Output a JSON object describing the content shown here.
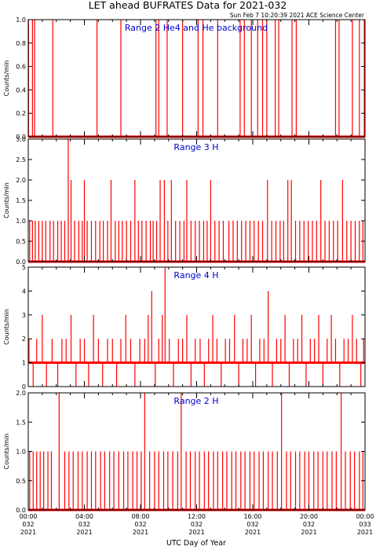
{
  "header": {
    "title": "LET ahead BUFRATES Data for 2021-032",
    "timestamp": "Sun Feb  7 10:20:39 2021 ACE Science Center"
  },
  "colors": {
    "trace": "#ff0000",
    "label": "#0000cc",
    "axis": "#000000"
  },
  "x_axis": {
    "label": "UTC Day of Year",
    "ticks": [
      {
        "time": "00:00",
        "doy": "032",
        "year": "2021"
      },
      {
        "time": "04:00",
        "doy": "032",
        "year": "2021"
      },
      {
        "time": "08:00",
        "doy": "032",
        "year": "2021"
      },
      {
        "time": "12:00",
        "doy": "032",
        "year": "2021"
      },
      {
        "time": "16:00",
        "doy": "032",
        "year": "2021"
      },
      {
        "time": "20:00",
        "doy": "032",
        "year": "2021"
      },
      {
        "time": "00:00",
        "doy": "033",
        "year": "2021"
      }
    ]
  },
  "chart_data": [
    {
      "type": "line",
      "label": "Range 2 He4 and He background",
      "ylabel": "Counts/min",
      "ylim": [
        0,
        1
      ],
      "yticks": [
        "0.0",
        "0.2",
        "0.4",
        "0.6",
        "0.8",
        "1.0"
      ],
      "xlim_hours": [
        0,
        24
      ],
      "baseline": 0,
      "spikes": [
        {
          "x": 0.02,
          "y": 1
        },
        {
          "x": 0.3,
          "y": 1
        },
        {
          "x": 0.45,
          "y": 1
        },
        {
          "x": 1.75,
          "y": 1
        },
        {
          "x": 4.9,
          "y": 1
        },
        {
          "x": 6.6,
          "y": 1
        },
        {
          "x": 9.1,
          "y": 1
        },
        {
          "x": 9.3,
          "y": 1
        },
        {
          "x": 9.9,
          "y": 1
        },
        {
          "x": 11.0,
          "y": 1
        },
        {
          "x": 12.1,
          "y": 1
        },
        {
          "x": 12.45,
          "y": 1
        },
        {
          "x": 13.5,
          "y": 1
        },
        {
          "x": 15.1,
          "y": 1
        },
        {
          "x": 15.4,
          "y": 1
        },
        {
          "x": 15.9,
          "y": 1
        },
        {
          "x": 16.35,
          "y": 1
        },
        {
          "x": 16.7,
          "y": 1
        },
        {
          "x": 17.0,
          "y": 1
        },
        {
          "x": 17.6,
          "y": 1
        },
        {
          "x": 17.85,
          "y": 1
        },
        {
          "x": 18.8,
          "y": 1
        },
        {
          "x": 19.1,
          "y": 1
        },
        {
          "x": 21.9,
          "y": 1
        },
        {
          "x": 22.15,
          "y": 1
        },
        {
          "x": 23.1,
          "y": 1
        },
        {
          "x": 23.6,
          "y": 1
        },
        {
          "x": 23.95,
          "y": 1
        }
      ]
    },
    {
      "type": "line",
      "label": "Range 3 H",
      "ylabel": "Counts/min",
      "ylim": [
        0,
        3
      ],
      "yticks": [
        "0.0",
        "0.5",
        "1.0",
        "1.5",
        "2.0",
        "2.5",
        "3.0"
      ],
      "xlim_hours": [
        0,
        24
      ],
      "baseline": 0,
      "spikes": [
        {
          "x": 0.1,
          "y": 1
        },
        {
          "x": 0.3,
          "y": 1
        },
        {
          "x": 0.5,
          "y": 1
        },
        {
          "x": 0.75,
          "y": 1
        },
        {
          "x": 1.0,
          "y": 1
        },
        {
          "x": 1.25,
          "y": 1
        },
        {
          "x": 1.55,
          "y": 1
        },
        {
          "x": 1.8,
          "y": 1
        },
        {
          "x": 2.1,
          "y": 1
        },
        {
          "x": 2.35,
          "y": 1
        },
        {
          "x": 2.6,
          "y": 1
        },
        {
          "x": 2.85,
          "y": 3
        },
        {
          "x": 3.05,
          "y": 2
        },
        {
          "x": 3.3,
          "y": 1
        },
        {
          "x": 3.6,
          "y": 1
        },
        {
          "x": 3.85,
          "y": 1
        },
        {
          "x": 4.0,
          "y": 2
        },
        {
          "x": 4.2,
          "y": 1
        },
        {
          "x": 4.5,
          "y": 1
        },
        {
          "x": 4.8,
          "y": 1
        },
        {
          "x": 5.1,
          "y": 1
        },
        {
          "x": 5.35,
          "y": 1
        },
        {
          "x": 5.65,
          "y": 1
        },
        {
          "x": 5.9,
          "y": 2
        },
        {
          "x": 6.2,
          "y": 1
        },
        {
          "x": 6.45,
          "y": 1
        },
        {
          "x": 6.7,
          "y": 1
        },
        {
          "x": 7.0,
          "y": 1
        },
        {
          "x": 7.3,
          "y": 1
        },
        {
          "x": 7.6,
          "y": 2
        },
        {
          "x": 7.85,
          "y": 1
        },
        {
          "x": 8.1,
          "y": 1
        },
        {
          "x": 8.4,
          "y": 1
        },
        {
          "x": 8.7,
          "y": 1
        },
        {
          "x": 8.9,
          "y": 1
        },
        {
          "x": 9.15,
          "y": 1
        },
        {
          "x": 9.4,
          "y": 2
        },
        {
          "x": 9.7,
          "y": 2
        },
        {
          "x": 9.95,
          "y": 1
        },
        {
          "x": 10.2,
          "y": 2
        },
        {
          "x": 10.5,
          "y": 1
        },
        {
          "x": 10.8,
          "y": 1
        },
        {
          "x": 11.1,
          "y": 1
        },
        {
          "x": 11.3,
          "y": 2
        },
        {
          "x": 11.6,
          "y": 1
        },
        {
          "x": 11.9,
          "y": 1
        },
        {
          "x": 12.2,
          "y": 1
        },
        {
          "x": 12.5,
          "y": 1
        },
        {
          "x": 12.75,
          "y": 1
        },
        {
          "x": 13.0,
          "y": 2
        },
        {
          "x": 13.3,
          "y": 1
        },
        {
          "x": 13.6,
          "y": 1
        },
        {
          "x": 13.9,
          "y": 1
        },
        {
          "x": 14.3,
          "y": 1
        },
        {
          "x": 14.6,
          "y": 1
        },
        {
          "x": 14.9,
          "y": 1
        },
        {
          "x": 15.2,
          "y": 1
        },
        {
          "x": 15.5,
          "y": 1
        },
        {
          "x": 15.8,
          "y": 1
        },
        {
          "x": 16.1,
          "y": 1
        },
        {
          "x": 16.4,
          "y": 1
        },
        {
          "x": 16.7,
          "y": 1
        },
        {
          "x": 17.05,
          "y": 2
        },
        {
          "x": 17.35,
          "y": 1
        },
        {
          "x": 17.65,
          "y": 1
        },
        {
          "x": 17.95,
          "y": 1
        },
        {
          "x": 18.2,
          "y": 1
        },
        {
          "x": 18.5,
          "y": 2
        },
        {
          "x": 18.75,
          "y": 2
        },
        {
          "x": 19.05,
          "y": 1
        },
        {
          "x": 19.35,
          "y": 1
        },
        {
          "x": 19.65,
          "y": 1
        },
        {
          "x": 19.95,
          "y": 1
        },
        {
          "x": 20.25,
          "y": 1
        },
        {
          "x": 20.55,
          "y": 1
        },
        {
          "x": 20.85,
          "y": 2
        },
        {
          "x": 21.15,
          "y": 1
        },
        {
          "x": 21.45,
          "y": 1
        },
        {
          "x": 21.75,
          "y": 1
        },
        {
          "x": 22.05,
          "y": 1
        },
        {
          "x": 22.4,
          "y": 2
        },
        {
          "x": 22.7,
          "y": 1
        },
        {
          "x": 23.0,
          "y": 1
        },
        {
          "x": 23.3,
          "y": 1
        },
        {
          "x": 23.6,
          "y": 1
        },
        {
          "x": 23.85,
          "y": 1
        }
      ]
    },
    {
      "type": "line",
      "label": "Range 4 H",
      "ylabel": "Counts/min",
      "ylim": [
        0,
        5
      ],
      "yticks": [
        "0",
        "1",
        "2",
        "3",
        "4",
        "5"
      ],
      "xlim_hours": [
        0,
        24
      ],
      "baseline": 1,
      "spikes": [
        {
          "x": 0.05,
          "y": 2
        },
        {
          "x": 0.35,
          "y": 0
        },
        {
          "x": 0.6,
          "y": 2
        },
        {
          "x": 1.0,
          "y": 3
        },
        {
          "x": 1.3,
          "y": 0
        },
        {
          "x": 1.7,
          "y": 2
        },
        {
          "x": 2.1,
          "y": 0
        },
        {
          "x": 2.4,
          "y": 2
        },
        {
          "x": 2.7,
          "y": 2
        },
        {
          "x": 3.05,
          "y": 3
        },
        {
          "x": 3.4,
          "y": 0
        },
        {
          "x": 3.7,
          "y": 2
        },
        {
          "x": 4.0,
          "y": 2
        },
        {
          "x": 4.3,
          "y": 0
        },
        {
          "x": 4.65,
          "y": 3
        },
        {
          "x": 5.0,
          "y": 2
        },
        {
          "x": 5.3,
          "y": 0
        },
        {
          "x": 5.65,
          "y": 2
        },
        {
          "x": 6.0,
          "y": 2
        },
        {
          "x": 6.3,
          "y": 0
        },
        {
          "x": 6.6,
          "y": 2
        },
        {
          "x": 6.95,
          "y": 3
        },
        {
          "x": 7.3,
          "y": 2
        },
        {
          "x": 7.6,
          "y": 0
        },
        {
          "x": 7.95,
          "y": 2
        },
        {
          "x": 8.3,
          "y": 2
        },
        {
          "x": 8.55,
          "y": 3
        },
        {
          "x": 8.8,
          "y": 4
        },
        {
          "x": 9.05,
          "y": 0
        },
        {
          "x": 9.3,
          "y": 2
        },
        {
          "x": 9.55,
          "y": 3
        },
        {
          "x": 9.75,
          "y": 5
        },
        {
          "x": 10.05,
          "y": 2
        },
        {
          "x": 10.35,
          "y": 0
        },
        {
          "x": 10.7,
          "y": 2
        },
        {
          "x": 11.0,
          "y": 2
        },
        {
          "x": 11.3,
          "y": 3
        },
        {
          "x": 11.6,
          "y": 0
        },
        {
          "x": 11.9,
          "y": 2
        },
        {
          "x": 12.25,
          "y": 2
        },
        {
          "x": 12.55,
          "y": 0
        },
        {
          "x": 12.85,
          "y": 2
        },
        {
          "x": 13.15,
          "y": 3
        },
        {
          "x": 13.45,
          "y": 2
        },
        {
          "x": 13.75,
          "y": 0
        },
        {
          "x": 14.05,
          "y": 2
        },
        {
          "x": 14.35,
          "y": 2
        },
        {
          "x": 14.7,
          "y": 3
        },
        {
          "x": 15.0,
          "y": 0
        },
        {
          "x": 15.3,
          "y": 2
        },
        {
          "x": 15.6,
          "y": 2
        },
        {
          "x": 15.9,
          "y": 3
        },
        {
          "x": 16.2,
          "y": 0
        },
        {
          "x": 16.5,
          "y": 2
        },
        {
          "x": 16.8,
          "y": 2
        },
        {
          "x": 17.1,
          "y": 4
        },
        {
          "x": 17.4,
          "y": 0
        },
        {
          "x": 17.7,
          "y": 2
        },
        {
          "x": 18.0,
          "y": 2
        },
        {
          "x": 18.3,
          "y": 3
        },
        {
          "x": 18.6,
          "y": 0
        },
        {
          "x": 18.9,
          "y": 2
        },
        {
          "x": 19.2,
          "y": 2
        },
        {
          "x": 19.5,
          "y": 3
        },
        {
          "x": 19.8,
          "y": 0
        },
        {
          "x": 20.1,
          "y": 2
        },
        {
          "x": 20.4,
          "y": 2
        },
        {
          "x": 20.7,
          "y": 3
        },
        {
          "x": 21.0,
          "y": 0
        },
        {
          "x": 21.3,
          "y": 2
        },
        {
          "x": 21.6,
          "y": 3
        },
        {
          "x": 21.9,
          "y": 2
        },
        {
          "x": 22.2,
          "y": 0
        },
        {
          "x": 22.5,
          "y": 2
        },
        {
          "x": 22.8,
          "y": 2
        },
        {
          "x": 23.1,
          "y": 3
        },
        {
          "x": 23.4,
          "y": 2
        },
        {
          "x": 23.7,
          "y": 0
        },
        {
          "x": 23.9,
          "y": 2
        }
      ]
    },
    {
      "type": "line",
      "label": "Range 2 H",
      "ylabel": "Counts/min",
      "ylim": [
        0,
        2
      ],
      "yticks": [
        "0.0",
        "0.5",
        "1.0",
        "1.5",
        "2.0"
      ],
      "xlim_hours": [
        0,
        24
      ],
      "baseline": 0,
      "spikes": [
        {
          "x": 0.1,
          "y": 1
        },
        {
          "x": 0.35,
          "y": 1
        },
        {
          "x": 0.6,
          "y": 1
        },
        {
          "x": 0.85,
          "y": 1
        },
        {
          "x": 1.1,
          "y": 1
        },
        {
          "x": 1.4,
          "y": 1
        },
        {
          "x": 1.65,
          "y": 1
        },
        {
          "x": 2.2,
          "y": 2
        },
        {
          "x": 2.6,
          "y": 1
        },
        {
          "x": 2.9,
          "y": 1
        },
        {
          "x": 3.2,
          "y": 1
        },
        {
          "x": 3.55,
          "y": 1
        },
        {
          "x": 3.85,
          "y": 1
        },
        {
          "x": 4.2,
          "y": 1
        },
        {
          "x": 4.5,
          "y": 1
        },
        {
          "x": 4.8,
          "y": 1
        },
        {
          "x": 5.15,
          "y": 1
        },
        {
          "x": 5.45,
          "y": 1
        },
        {
          "x": 5.8,
          "y": 1
        },
        {
          "x": 6.1,
          "y": 1
        },
        {
          "x": 6.45,
          "y": 1
        },
        {
          "x": 6.8,
          "y": 1
        },
        {
          "x": 7.1,
          "y": 1
        },
        {
          "x": 7.45,
          "y": 1
        },
        {
          "x": 7.75,
          "y": 1
        },
        {
          "x": 8.05,
          "y": 1
        },
        {
          "x": 8.3,
          "y": 2
        },
        {
          "x": 8.65,
          "y": 1
        },
        {
          "x": 9.0,
          "y": 1
        },
        {
          "x": 9.3,
          "y": 1
        },
        {
          "x": 9.65,
          "y": 1
        },
        {
          "x": 9.95,
          "y": 1
        },
        {
          "x": 10.3,
          "y": 1
        },
        {
          "x": 10.65,
          "y": 1
        },
        {
          "x": 10.9,
          "y": 2
        },
        {
          "x": 11.25,
          "y": 1
        },
        {
          "x": 11.55,
          "y": 1
        },
        {
          "x": 11.9,
          "y": 1
        },
        {
          "x": 12.2,
          "y": 1
        },
        {
          "x": 12.55,
          "y": 1
        },
        {
          "x": 12.85,
          "y": 1
        },
        {
          "x": 13.2,
          "y": 1
        },
        {
          "x": 13.5,
          "y": 1
        },
        {
          "x": 13.85,
          "y": 1
        },
        {
          "x": 14.15,
          "y": 1
        },
        {
          "x": 14.5,
          "y": 1
        },
        {
          "x": 14.8,
          "y": 1
        },
        {
          "x": 15.15,
          "y": 1
        },
        {
          "x": 15.45,
          "y": 1
        },
        {
          "x": 15.8,
          "y": 1
        },
        {
          "x": 16.1,
          "y": 1
        },
        {
          "x": 16.45,
          "y": 1
        },
        {
          "x": 16.75,
          "y": 1
        },
        {
          "x": 17.1,
          "y": 1
        },
        {
          "x": 17.4,
          "y": 1
        },
        {
          "x": 17.75,
          "y": 1
        },
        {
          "x": 18.05,
          "y": 2
        },
        {
          "x": 18.4,
          "y": 1
        },
        {
          "x": 18.7,
          "y": 1
        },
        {
          "x": 19.05,
          "y": 1
        },
        {
          "x": 19.35,
          "y": 1
        },
        {
          "x": 19.7,
          "y": 1
        },
        {
          "x": 20.0,
          "y": 1
        },
        {
          "x": 20.35,
          "y": 1
        },
        {
          "x": 20.65,
          "y": 1
        },
        {
          "x": 21.0,
          "y": 1
        },
        {
          "x": 21.3,
          "y": 1
        },
        {
          "x": 21.65,
          "y": 1
        },
        {
          "x": 21.95,
          "y": 1
        },
        {
          "x": 22.3,
          "y": 2
        },
        {
          "x": 22.6,
          "y": 1
        },
        {
          "x": 22.95,
          "y": 1
        },
        {
          "x": 23.25,
          "y": 1
        },
        {
          "x": 23.6,
          "y": 1
        },
        {
          "x": 23.85,
          "y": 1
        }
      ]
    }
  ]
}
